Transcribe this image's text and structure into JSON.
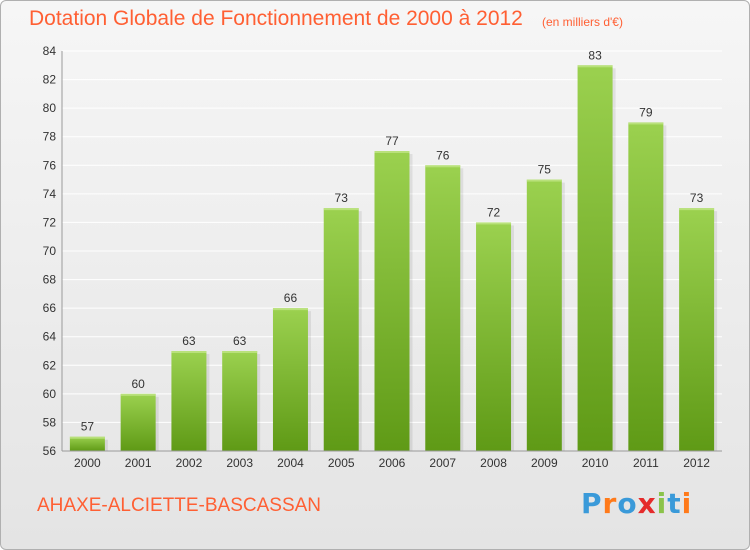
{
  "title": "Dotation Globale de Fonctionnement de 2000 à 2012",
  "subtitle": "(en milliers d'€)",
  "commune": "AHAXE-ALCIETTE-BASCASSAN",
  "logo": {
    "text": "Proxiti",
    "letter_colors": [
      "#3a9ad9",
      "#ff7a1a",
      "#3a9ad9",
      "#e52b2b",
      "#8bc34a",
      "#3a9ad9",
      "#ff7a1a"
    ]
  },
  "colors": {
    "bar_light": "#9bd14f",
    "bar_dark": "#5f9a16",
    "grid": "#ffffff",
    "axis_text": "#333333",
    "label_text": "#333333"
  },
  "chart_data": {
    "type": "bar",
    "title": "Dotation Globale de Fonctionnement de 2000 à 2012",
    "subtitle": "(en milliers d'€)",
    "categories": [
      "2000",
      "2001",
      "2002",
      "2003",
      "2004",
      "2005",
      "2006",
      "2007",
      "2008",
      "2009",
      "2010",
      "2011",
      "2012"
    ],
    "values": [
      57,
      60,
      63,
      63,
      66,
      73,
      77,
      76,
      72,
      75,
      83,
      79,
      73
    ],
    "ylim": [
      56,
      84
    ],
    "yticks": [
      56,
      58,
      60,
      62,
      64,
      66,
      68,
      70,
      72,
      74,
      76,
      78,
      80,
      82,
      84
    ],
    "grid": true,
    "legend": "none",
    "data_labels": true
  }
}
